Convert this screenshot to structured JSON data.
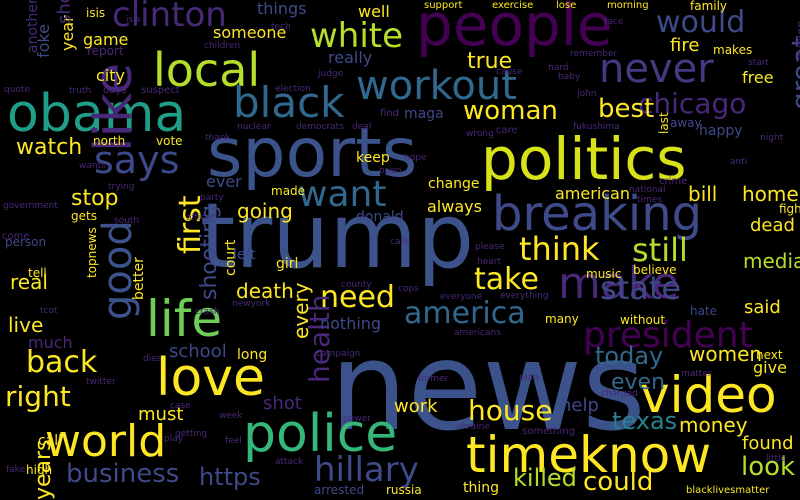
{
  "words": [
    {
      "text": "news",
      "color": "#3b528b"
    },
    {
      "text": "trump",
      "color": "#3b528b"
    },
    {
      "text": "sports",
      "color": "#3b528b"
    },
    {
      "text": "politics",
      "color": "#d8e219"
    },
    {
      "text": "people",
      "color": "#440154"
    },
    {
      "text": "police",
      "color": "#35b779"
    },
    {
      "text": "time",
      "color": "#fde725"
    },
    {
      "text": "know",
      "color": "#fde725"
    },
    {
      "text": "video",
      "color": "#fde725"
    },
    {
      "text": "love",
      "color": "#fde725"
    },
    {
      "text": "obama",
      "color": "#1f9e89"
    },
    {
      "text": "like",
      "color": "#482878"
    },
    {
      "text": "world",
      "color": "#fde725"
    },
    {
      "text": "life",
      "color": "#6ece58"
    },
    {
      "text": "local",
      "color": "#b5de2b"
    },
    {
      "text": "breaking",
      "color": "#3e4a89"
    },
    {
      "text": "make",
      "color": "#482878"
    },
    {
      "text": "black",
      "color": "#31688e"
    },
    {
      "text": "workout",
      "color": "#31688e"
    },
    {
      "text": "never",
      "color": "#443a83"
    },
    {
      "text": "says",
      "color": "#3e4989"
    },
    {
      "text": "clinton",
      "color": "#482878"
    },
    {
      "text": "white",
      "color": "#b5de2b"
    },
    {
      "text": "want",
      "color": "#31688e"
    },
    {
      "text": "good",
      "color": "#3b528b"
    },
    {
      "text": "hillary",
      "color": "#3e4a89"
    },
    {
      "text": "president",
      "color": "#440154"
    },
    {
      "text": "america",
      "color": "#31688e"
    },
    {
      "text": "state",
      "color": "#3e4989"
    },
    {
      "text": "house",
      "color": "#fde725"
    },
    {
      "text": "business",
      "color": "#3e4989"
    },
    {
      "text": "think",
      "color": "#fde725"
    },
    {
      "text": "still",
      "color": "#b5de2b"
    },
    {
      "text": "woman",
      "color": "#fde725"
    },
    {
      "text": "need",
      "color": "#fde725"
    },
    {
      "text": "back",
      "color": "#fde725"
    },
    {
      "text": "right",
      "color": "#fde725"
    },
    {
      "text": "chicago",
      "color": "#482878"
    },
    {
      "text": "would",
      "color": "#3e4989"
    },
    {
      "text": "health",
      "color": "#482878"
    },
    {
      "text": "take",
      "color": "#fde725"
    },
    {
      "text": "first",
      "color": "#fde725"
    },
    {
      "text": "great",
      "color": "#3e4989"
    },
    {
      "text": "could",
      "color": "#fde725"
    },
    {
      "text": "texas",
      "color": "#26828e"
    },
    {
      "text": "look",
      "color": "#b5de2b"
    },
    {
      "text": "killed",
      "color": "#b5de2b"
    },
    {
      "text": "media",
      "color": "#b5de2b"
    },
    {
      "text": "today",
      "color": "#31688e"
    },
    {
      "text": "https",
      "color": "#3e4989"
    },
    {
      "text": "shooting",
      "color": "#3e4989"
    },
    {
      "text": "women",
      "color": "#fde725"
    },
    {
      "text": "money",
      "color": "#fde725"
    },
    {
      "text": "years",
      "color": "#fde725"
    },
    {
      "text": "death",
      "color": "#fde725"
    },
    {
      "text": "live",
      "color": "#fde725"
    },
    {
      "text": "best",
      "color": "#fde725"
    },
    {
      "text": "watch",
      "color": "#fde725"
    },
    {
      "text": "true",
      "color": "#fde725"
    },
    {
      "text": "even",
      "color": "#31688e"
    },
    {
      "text": "every",
      "color": "#fde725"
    },
    {
      "text": "real",
      "color": "#fde725"
    },
    {
      "text": "stop",
      "color": "#fde725"
    },
    {
      "text": "bill",
      "color": "#fde725"
    },
    {
      "text": "school",
      "color": "#3e4989"
    },
    {
      "text": "going",
      "color": "#fde725"
    },
    {
      "text": "home",
      "color": "#fde725"
    },
    {
      "text": "dead",
      "color": "#fde725"
    },
    {
      "text": "found",
      "color": "#fde725"
    },
    {
      "text": "help",
      "color": "#3e4989"
    },
    {
      "text": "work",
      "color": "#fde725"
    },
    {
      "text": "said",
      "color": "#fde725"
    },
    {
      "text": "american",
      "color": "#fde725"
    },
    {
      "text": "always",
      "color": "#fde725"
    },
    {
      "text": "fire",
      "color": "#fde725"
    },
    {
      "text": "must",
      "color": "#fde725"
    },
    {
      "text": "shot",
      "color": "#482878"
    },
    {
      "text": "give",
      "color": "#fde725"
    },
    {
      "text": "nothing",
      "color": "#3e4989"
    },
    {
      "text": "much",
      "color": "#482878"
    },
    {
      "text": "game",
      "color": "#fde725"
    },
    {
      "text": "city",
      "color": "#fde725"
    },
    {
      "text": "foke",
      "color": "#3e4989"
    },
    {
      "text": "year",
      "color": "#fde725"
    },
    {
      "text": "show",
      "color": "#482878"
    },
    {
      "text": "someone",
      "color": "#fde725"
    },
    {
      "text": "things",
      "color": "#3e4989"
    },
    {
      "text": "really",
      "color": "#3e4989"
    },
    {
      "text": "well",
      "color": "#fde725"
    },
    {
      "text": "maga",
      "color": "#3e4989"
    },
    {
      "text": "free",
      "color": "#fde725"
    },
    {
      "text": "happy",
      "color": "#3e4989"
    },
    {
      "text": "makes",
      "color": "#fde725"
    },
    {
      "text": "another",
      "color": "#482878"
    },
    {
      "text": "isis",
      "color": "#fde725"
    },
    {
      "text": "ever",
      "color": "#3e4989"
    },
    {
      "text": "donald",
      "color": "#3e4989"
    },
    {
      "text": "keep",
      "color": "#fde725"
    },
    {
      "text": "girl",
      "color": "#fde725"
    },
    {
      "text": "court",
      "color": "#fde725"
    },
    {
      "text": "better",
      "color": "#fde725"
    },
    {
      "text": "made",
      "color": "#fde725"
    },
    {
      "text": "change",
      "color": "#fde725"
    },
    {
      "text": "left",
      "color": "#3e4989"
    },
    {
      "text": "long",
      "color": "#fde725"
    },
    {
      "text": "many",
      "color": "#fde725"
    },
    {
      "text": "without",
      "color": "#fde725"
    },
    {
      "text": "believe",
      "color": "#fde725"
    },
    {
      "text": "music",
      "color": "#fde725"
    },
    {
      "text": "hate",
      "color": "#3e4989"
    },
    {
      "text": "next",
      "color": "#fde725"
    },
    {
      "text": "away",
      "color": "#3e4989"
    },
    {
      "text": "north",
      "color": "#fde725"
    },
    {
      "text": "vote",
      "color": "#fde725"
    },
    {
      "text": "last",
      "color": "#fde725"
    },
    {
      "text": "fight",
      "color": "#fde725"
    },
    {
      "text": "family",
      "color": "#fde725"
    },
    {
      "text": "million",
      "color": "#482878"
    },
    {
      "text": "report",
      "color": "#482878"
    },
    {
      "text": "call",
      "color": "#fde725"
    },
    {
      "text": "high",
      "color": "#fde725"
    },
    {
      "text": "gets",
      "color": "#fde725"
    },
    {
      "text": "person",
      "color": "#3e4989"
    },
    {
      "text": "topnews",
      "color": "#fde725"
    },
    {
      "text": "tell",
      "color": "#fde725"
    },
    {
      "text": "russia",
      "color": "#fde725"
    },
    {
      "text": "thing",
      "color": "#fde725"
    },
    {
      "text": "arrested",
      "color": "#3e4989"
    },
    {
      "text": "blacklivesmatter",
      "color": "#fde725"
    },
    {
      "text": "support",
      "color": "#fde725"
    },
    {
      "text": "exercise",
      "color": "#fde725"
    },
    {
      "text": "lose",
      "color": "#fde725"
    },
    {
      "text": "morning",
      "color": "#fde725"
    },
    {
      "text": "crime",
      "color": "#482878"
    }
  ]
}
